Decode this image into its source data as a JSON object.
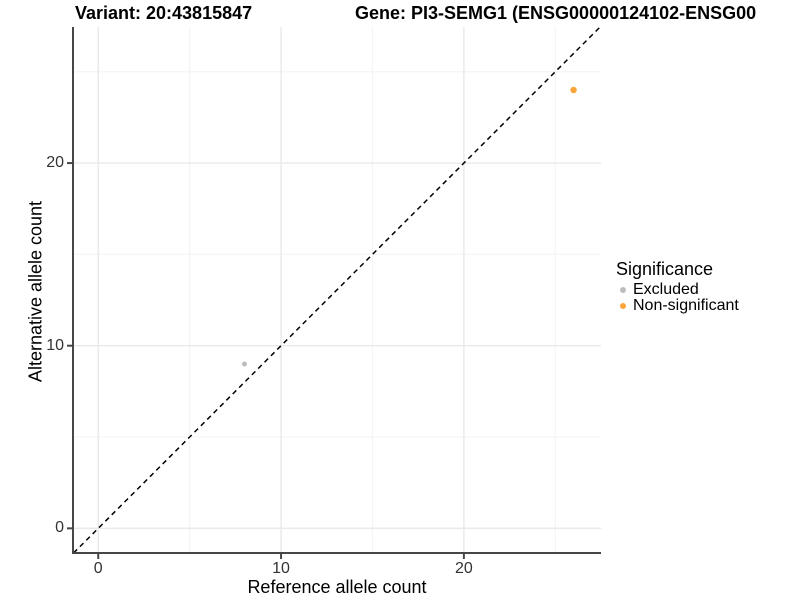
{
  "title": {
    "variant": "Variant: 20:43815847",
    "gene": "Gene: PI3-SEMG1 (ENSG00000124102-ENSG00"
  },
  "x_axis": {
    "label": "Reference allele count"
  },
  "y_axis": {
    "label": "Alternative allele count"
  },
  "legend": {
    "title": "Significance",
    "items": [
      {
        "label": "Excluded",
        "color": "#BDBDBD"
      },
      {
        "label": "Non-significant",
        "color": "#FAA43A"
      }
    ]
  },
  "chart_data": {
    "type": "scatter",
    "title": "Variant: 20:43815847 / Gene: PI3-SEMG1 (ENSG00000124102-ENSG00 (truncated at image edge)",
    "xlabel": "Reference allele count",
    "ylabel": "Alternative allele count",
    "xlim": [
      -1.38,
      27.5
    ],
    "ylim": [
      -1.35,
      27.45
    ],
    "x_ticks": [
      0,
      10,
      20
    ],
    "y_ticks": [
      0,
      10,
      20
    ],
    "x_minor_ticks": [
      5,
      15,
      25
    ],
    "y_minor_ticks": [
      5,
      15,
      25
    ],
    "grid": true,
    "legend_position": "right",
    "series": [
      {
        "name": "Excluded",
        "color": "#BDBDBD",
        "point_radius_px": 2.5,
        "points": [
          {
            "x": 8,
            "y": 9
          }
        ]
      },
      {
        "name": "Non-significant",
        "color": "#FAA43A",
        "point_radius_px": 3.2,
        "points": [
          {
            "x": 26,
            "y": 24
          }
        ]
      }
    ],
    "reference_line": {
      "type": "identity y = x",
      "style": "dashed",
      "color": "#000000"
    }
  },
  "colors": {
    "axis_line": "#474747",
    "grid_major": "#E9E9E9",
    "grid_minor": "#F5F5F5",
    "background": "#FFFFFF"
  }
}
